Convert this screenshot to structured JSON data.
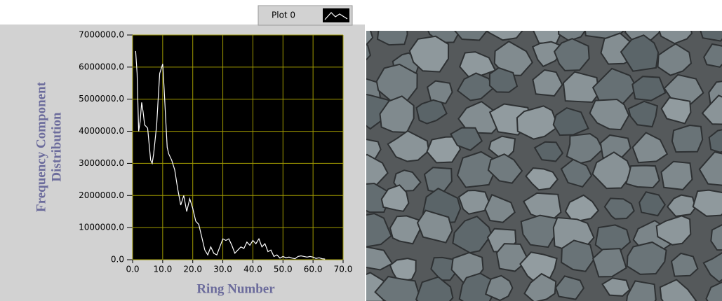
{
  "chart_data": {
    "type": "line",
    "xlabel": "Ring Number",
    "ylabel": [
      "Frequency Component",
      "Distribution"
    ],
    "legend": "top-right",
    "x": [
      1,
      1.5,
      2,
      2.5,
      3,
      3.5,
      4,
      5,
      6,
      6.5,
      7,
      8,
      8.5,
      9,
      10,
      10.5,
      11,
      11.5,
      12,
      13,
      14,
      15,
      16,
      17,
      18,
      19,
      20,
      21,
      22,
      23,
      24,
      25,
      26,
      27,
      28,
      29,
      30,
      31,
      32,
      33,
      34,
      35,
      36,
      37,
      38,
      39,
      40,
      41,
      42,
      43,
      44,
      45,
      46,
      47,
      48,
      49,
      50,
      51,
      52,
      53,
      54,
      55,
      56,
      57,
      58,
      59,
      60,
      61,
      62,
      63,
      64
    ],
    "series": [
      {
        "name": "Plot 0",
        "color": "#ffffff",
        "values": [
          6500000,
          5800000,
          4000000,
          4300000,
          4900000,
          4600000,
          4200000,
          4100000,
          3100000,
          3000000,
          3300000,
          4200000,
          5000000,
          5800000,
          6100000,
          5300000,
          4400000,
          3500000,
          3300000,
          3100000,
          2800000,
          2200000,
          1700000,
          2000000,
          1500000,
          1900000,
          1600000,
          1200000,
          1100000,
          700000,
          300000,
          150000,
          400000,
          200000,
          150000,
          400000,
          650000,
          600000,
          650000,
          450000,
          200000,
          300000,
          400000,
          350000,
          550000,
          450000,
          600000,
          500000,
          650000,
          400000,
          500000,
          250000,
          300000,
          100000,
          150000,
          50000,
          100000,
          60000,
          80000,
          50000,
          30000,
          100000,
          120000,
          100000,
          80000,
          100000,
          80000,
          40000,
          60000,
          30000,
          20000
        ]
      }
    ],
    "xlim": [
      0,
      70
    ],
    "xticks": [
      {
        "value": 0,
        "label": "0.0"
      },
      {
        "value": 10,
        "label": "10.0"
      },
      {
        "value": 20,
        "label": "20.0"
      },
      {
        "value": 30,
        "label": "30.0"
      },
      {
        "value": 40,
        "label": "40.0"
      },
      {
        "value": 50,
        "label": "50.0"
      },
      {
        "value": 60,
        "label": "60.0"
      },
      {
        "value": 70,
        "label": "70.0"
      }
    ],
    "ylim": [
      0,
      7000000
    ],
    "yticks": [
      {
        "value": 0,
        "label": "0.0"
      },
      {
        "value": 1000000,
        "label": "1000000.0"
      },
      {
        "value": 2000000,
        "label": "2000000.0"
      },
      {
        "value": 3000000,
        "label": "3000000.0"
      },
      {
        "value": 4000000,
        "label": "4000000.0"
      },
      {
        "value": 5000000,
        "label": "5000000.0"
      },
      {
        "value": 6000000,
        "label": "6000000.0"
      },
      {
        "value": 7000000,
        "label": "7000000.0"
      }
    ],
    "grid": true,
    "grid_color": "#a09a00",
    "plot_background": "#000000"
  }
}
